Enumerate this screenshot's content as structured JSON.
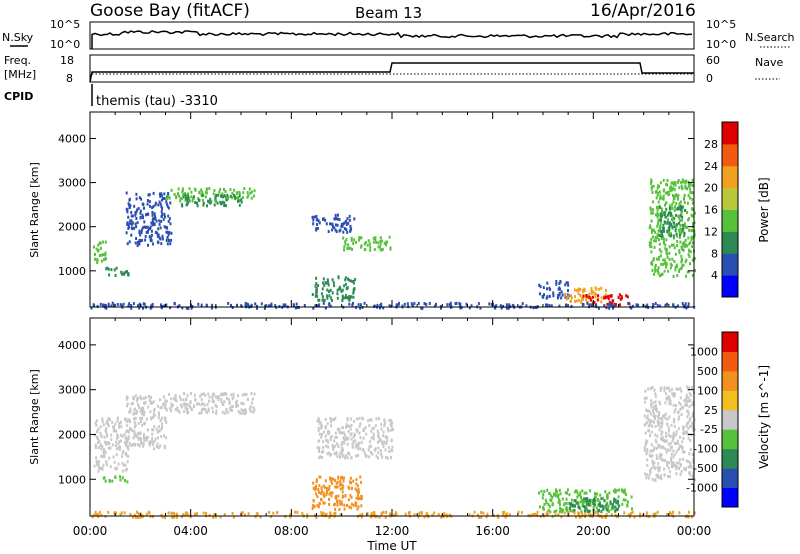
{
  "header": {
    "station": "Goose Bay (fitACF)",
    "beam": "Beam 13",
    "date": "16/Apr/2016"
  },
  "nsky_panel": {
    "left_label": "N.Sky",
    "right_label": "N.Search",
    "left_ticks": [
      "10^5",
      "10^0"
    ],
    "right_ticks": [
      "10^5",
      "10^0"
    ]
  },
  "freq_panel": {
    "left_label_1": "Freq.",
    "left_label_2": "[MHz]",
    "right_label": "Nave",
    "left_ticks": [
      "18",
      "8"
    ],
    "right_ticks": [
      "60",
      "0"
    ],
    "cpid_label": "CPID",
    "program": "themis (tau) -3310"
  },
  "chart_data": [
    {
      "type": "heatmap",
      "title": "",
      "xlabel": "",
      "ylabel": "Slant Range [km]",
      "x_tick_labels": [
        "00:00",
        "04:00",
        "08:00",
        "12:00",
        "16:00",
        "20:00",
        "00:00"
      ],
      "xlim_hours": [
        0,
        24
      ],
      "y_ticks": [
        1000,
        2000,
        3000,
        4000
      ],
      "ylim_km": [
        180,
        4600
      ],
      "colorbar_label": "Power [dB]",
      "colorbar_ticks": [
        "4",
        "8",
        "12",
        "16",
        "20",
        "24",
        "28"
      ],
      "colorbar_colors": [
        "#0000ff",
        "#2b4fb0",
        "#2e8a55",
        "#55c23a",
        "#b8c83a",
        "#f2a020",
        "#f25a10",
        "#e00000"
      ],
      "regions": [
        {
          "t0": 0.1,
          "t1": 0.6,
          "r0": 1200,
          "r1": 1700,
          "color": "#55c23a"
        },
        {
          "t0": 0.6,
          "t1": 1.5,
          "r0": 900,
          "r1": 1100,
          "color": "#2e8a55"
        },
        {
          "t0": 1.4,
          "t1": 3.2,
          "r0": 1600,
          "r1": 2800,
          "color": "#2b4fb0"
        },
        {
          "t0": 3.0,
          "t1": 6.5,
          "r0": 2600,
          "r1": 2900,
          "color": "#55c23a"
        },
        {
          "t0": 3.5,
          "t1": 6.0,
          "r0": 2500,
          "r1": 2750,
          "color": "#2e8a55"
        },
        {
          "t0": 8.8,
          "t1": 10.5,
          "r0": 1900,
          "r1": 2300,
          "color": "#2b4fb0"
        },
        {
          "t0": 10.0,
          "t1": 12.0,
          "r0": 1500,
          "r1": 1800,
          "color": "#55c23a"
        },
        {
          "t0": 8.8,
          "t1": 10.5,
          "r0": 350,
          "r1": 900,
          "color": "#2e8a55"
        },
        {
          "t0": 17.8,
          "t1": 19.0,
          "r0": 400,
          "r1": 800,
          "color": "#2b4fb0"
        },
        {
          "t0": 18.8,
          "t1": 20.5,
          "r0": 300,
          "r1": 650,
          "color": "#f2a020"
        },
        {
          "t0": 19.5,
          "t1": 21.5,
          "r0": 250,
          "r1": 500,
          "color": "#e00000"
        },
        {
          "t0": 22.2,
          "t1": 24.0,
          "r0": 900,
          "r1": 3100,
          "color": "#55c23a"
        },
        {
          "t0": 22.6,
          "t1": 23.6,
          "r0": 1800,
          "r1": 2500,
          "color": "#2e8a55"
        },
        {
          "t0": 0.0,
          "t1": 24.0,
          "r0": 180,
          "r1": 300,
          "color": "#2b4fb0"
        }
      ]
    },
    {
      "type": "heatmap",
      "title": "",
      "xlabel": "Time UT",
      "ylabel": "Slant Range [km]",
      "x_tick_labels": [
        "00:00",
        "04:00",
        "08:00",
        "12:00",
        "16:00",
        "20:00",
        "00:00"
      ],
      "xlim_hours": [
        0,
        24
      ],
      "y_ticks": [
        1000,
        2000,
        3000,
        4000
      ],
      "ylim_km": [
        180,
        4600
      ],
      "colorbar_label": "Velocity [m s^-1]",
      "colorbar_ticks": [
        "1000",
        "500",
        "100",
        "25",
        "-25",
        "-100",
        "-500",
        "-1000"
      ],
      "colorbar_colors": [
        "#0000ff",
        "#2b4fb0",
        "#2e8a55",
        "#55c23a",
        "#c8c8c8",
        "#f2c020",
        "#f29020",
        "#f25a10",
        "#e00000"
      ],
      "regions": [
        {
          "t0": 0.1,
          "t1": 1.5,
          "r0": 1200,
          "r1": 2400,
          "color": "#c8c8c8"
        },
        {
          "t0": 0.5,
          "t1": 1.5,
          "r0": 950,
          "r1": 1100,
          "color": "#55c23a"
        },
        {
          "t0": 1.4,
          "t1": 3.0,
          "r0": 1700,
          "r1": 2900,
          "color": "#c8c8c8"
        },
        {
          "t0": 3.0,
          "t1": 6.5,
          "r0": 2500,
          "r1": 2950,
          "color": "#c8c8c8"
        },
        {
          "t0": 9.0,
          "t1": 12.0,
          "r0": 1500,
          "r1": 2400,
          "color": "#c8c8c8"
        },
        {
          "t0": 8.8,
          "t1": 10.8,
          "r0": 350,
          "r1": 1100,
          "color": "#f29020"
        },
        {
          "t0": 17.8,
          "t1": 21.5,
          "r0": 300,
          "r1": 800,
          "color": "#55c23a"
        },
        {
          "t0": 19.0,
          "t1": 21.0,
          "r0": 300,
          "r1": 600,
          "color": "#2e8a55"
        },
        {
          "t0": 22.0,
          "t1": 24.0,
          "r0": 1000,
          "r1": 3100,
          "color": "#c8c8c8"
        },
        {
          "t0": 0.0,
          "t1": 24.0,
          "r0": 180,
          "r1": 300,
          "color": "#f2a020"
        }
      ]
    }
  ]
}
